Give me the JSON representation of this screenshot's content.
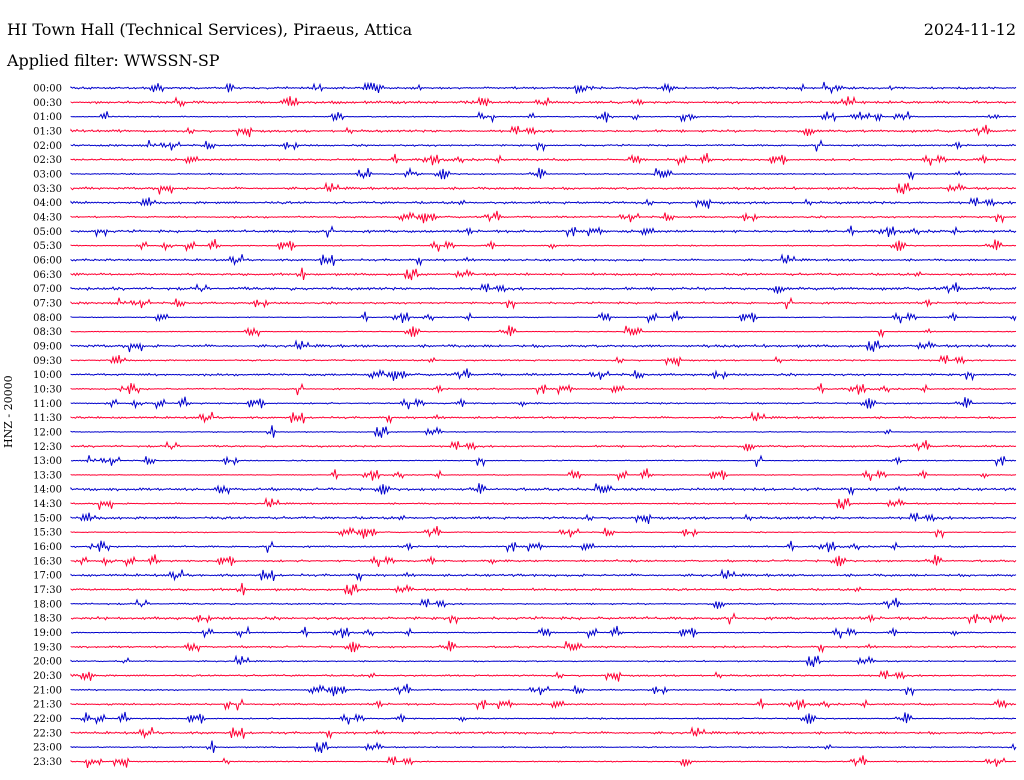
{
  "header": {
    "station": "HI Town Hall (Technical Services), Piraeus, Attica",
    "date": "2024-11-12",
    "filter": "Applied filter: WWSSN-SP"
  },
  "chart_data": {
    "type": "line",
    "title": "HI Town Hall (Technical Services), Piraeus, Attica",
    "ylabel": "HNZ - 20000",
    "colors": [
      "#0000cc",
      "#ff0033"
    ],
    "rows": [
      "00:00",
      "00:30",
      "01:00",
      "01:30",
      "02:00",
      "02:30",
      "03:00",
      "03:30",
      "04:00",
      "04:30",
      "05:00",
      "05:30",
      "06:00",
      "06:30",
      "07:00",
      "07:30",
      "08:00",
      "08:30",
      "09:00",
      "09:30",
      "10:00",
      "10:30",
      "11:00",
      "11:30",
      "12:00",
      "12:30",
      "13:00",
      "13:30",
      "14:00",
      "14:30",
      "15:00",
      "15:30",
      "16:00",
      "16:30",
      "17:00",
      "17:30",
      "18:00",
      "18:30",
      "19:00",
      "19:30",
      "20:00",
      "20:30",
      "21:00",
      "21:30",
      "22:00",
      "22:30",
      "23:00",
      "23:30"
    ]
  }
}
